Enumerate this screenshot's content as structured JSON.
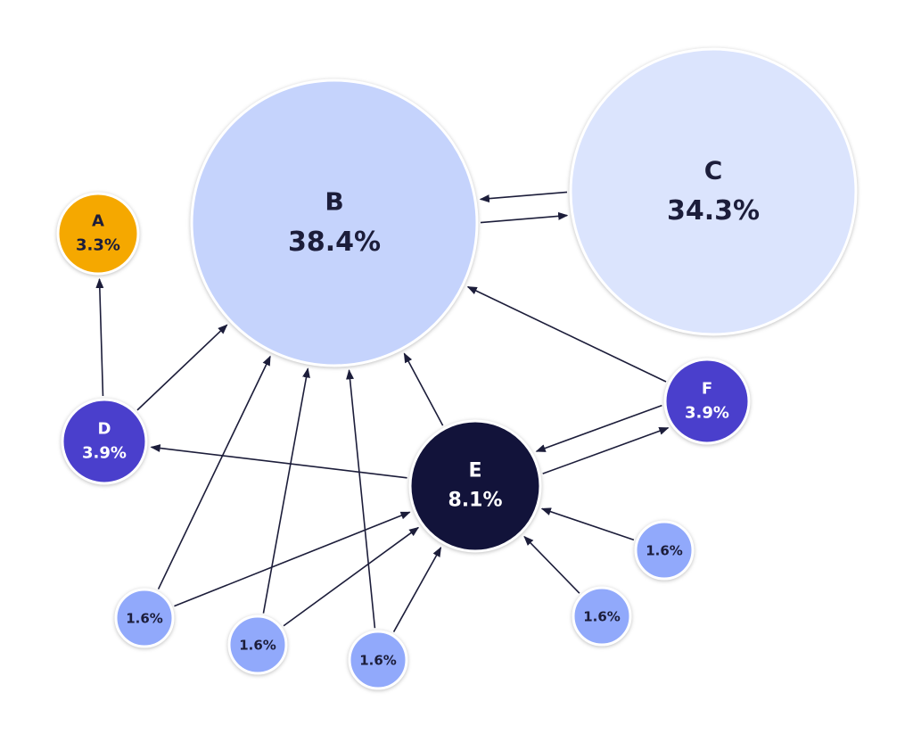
{
  "nodes": [
    {
      "label": "A",
      "value": "3.3%"
    },
    {
      "label": "B",
      "value": "38.4%"
    },
    {
      "label": "C",
      "value": "34.3%"
    },
    {
      "label": "D",
      "value": "3.9%"
    },
    {
      "label": "E",
      "value": "8.1%"
    },
    {
      "label": "F",
      "value": "3.9%"
    },
    {
      "value": "1.6%"
    },
    {
      "value": "1.6%"
    },
    {
      "value": "1.6%"
    },
    {
      "value": "1.6%"
    },
    {
      "value": "1.6%"
    }
  ]
}
